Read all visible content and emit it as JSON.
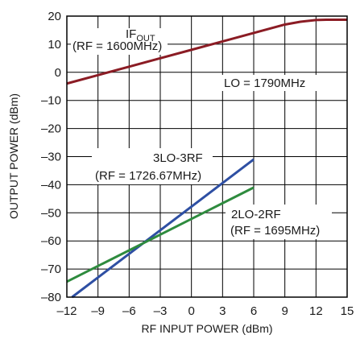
{
  "chart_data": {
    "type": "line",
    "xlabel": "RF INPUT POWER (dBm)",
    "ylabel": "OUTPUT POWER (dBm)",
    "xlim": [
      -12,
      15
    ],
    "ylim": [
      -80,
      20
    ],
    "x_ticks": [
      "–12",
      "–9",
      "–6",
      "–3",
      "0",
      "3",
      "6",
      "9",
      "12",
      "15"
    ],
    "y_ticks": [
      "20",
      "10",
      "0",
      "–10",
      "–20",
      "–30",
      "–40",
      "–50",
      "–60",
      "–70",
      "–80"
    ],
    "grid": true,
    "series": [
      {
        "name": "IFOUT (RF = 1600MHz)",
        "color": "#8b1c24",
        "x": [
          -12,
          -9,
          -6,
          -3,
          0,
          3,
          6,
          9,
          10.5,
          12,
          13,
          15
        ],
        "y": [
          -4,
          -1,
          2,
          5,
          8,
          11,
          14,
          17,
          18,
          18.6,
          18.7,
          18.7
        ]
      },
      {
        "name": "3LO-3RF (RF = 1726.67MHz)",
        "color": "#2e4fa3",
        "x": [
          -11.5,
          6
        ],
        "y": [
          -80,
          -31
        ]
      },
      {
        "name": "2LO-2RF (RF = 1695MHz)",
        "color": "#2e8b3e",
        "x": [
          -12,
          6
        ],
        "y": [
          -74.5,
          -41
        ]
      }
    ],
    "annotations": {
      "ifout_main": "IF",
      "ifout_sub": "OUT",
      "ifout_rf": "(RF = 1600MHz)",
      "lo": "LO = 1790MHz",
      "lo3_main": "3LO-3RF",
      "lo3_rf": "(RF = 1726.67MHz)",
      "lo2_main": "2LO-2RF",
      "lo2_rf": "(RF = 1695MHz)"
    }
  }
}
